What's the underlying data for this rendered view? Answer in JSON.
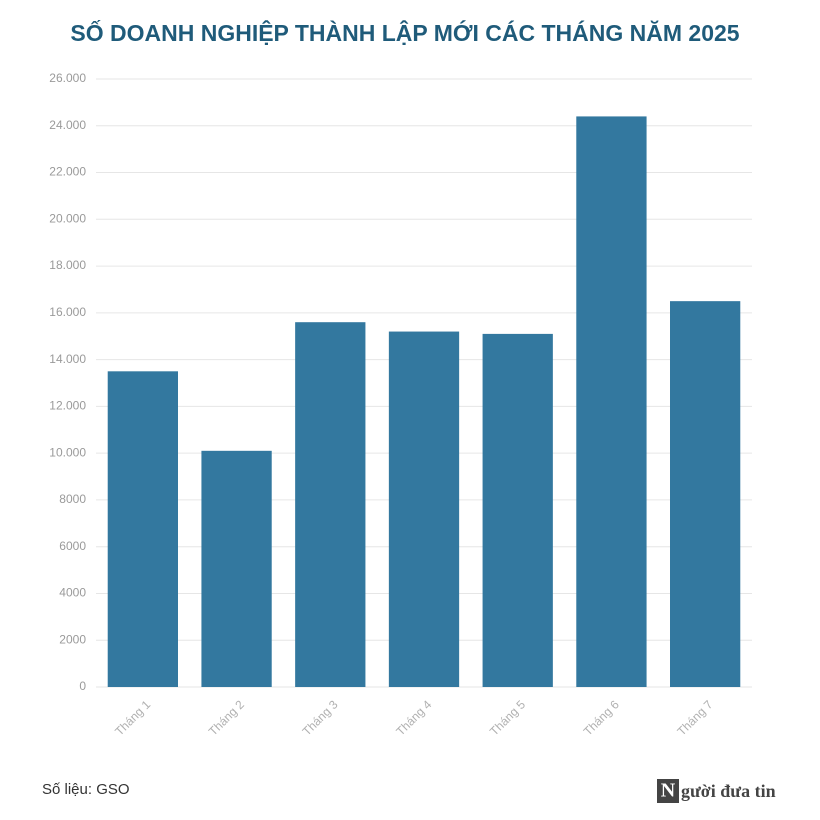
{
  "chart_data": {
    "type": "bar",
    "title": "SỐ DOANH NGHIỆP THÀNH LẬP MỚI CÁC THÁNG NĂM 2025",
    "categories": [
      "Tháng 1",
      "Tháng 2",
      "Tháng 3",
      "Tháng 4",
      "Tháng 5",
      "Tháng 6",
      "Tháng 7"
    ],
    "values": [
      13500,
      10100,
      15600,
      15200,
      15100,
      24400,
      16500
    ],
    "color": "#33789f",
    "ylim": [
      0,
      26000
    ],
    "yticks": [
      0,
      2000,
      4000,
      6000,
      8000,
      {
        "value": 10000,
        "label": "10.000"
      },
      {
        "value": 12000,
        "label": "12.000"
      },
      {
        "value": 14000,
        "label": "14.000"
      },
      {
        "value": 16000,
        "label": "16.000"
      },
      {
        "value": 18000,
        "label": "18.000"
      },
      {
        "value": 20000,
        "label": "20.000"
      },
      {
        "value": 22000,
        "label": "22.000"
      },
      {
        "value": 24000,
        "label": "24.000"
      },
      {
        "value": 26000,
        "label": "26.000"
      }
    ],
    "grid": true,
    "source": "Số liệu: GSO",
    "logo": {
      "initial": "N",
      "rest": "gười đưa tin"
    }
  }
}
